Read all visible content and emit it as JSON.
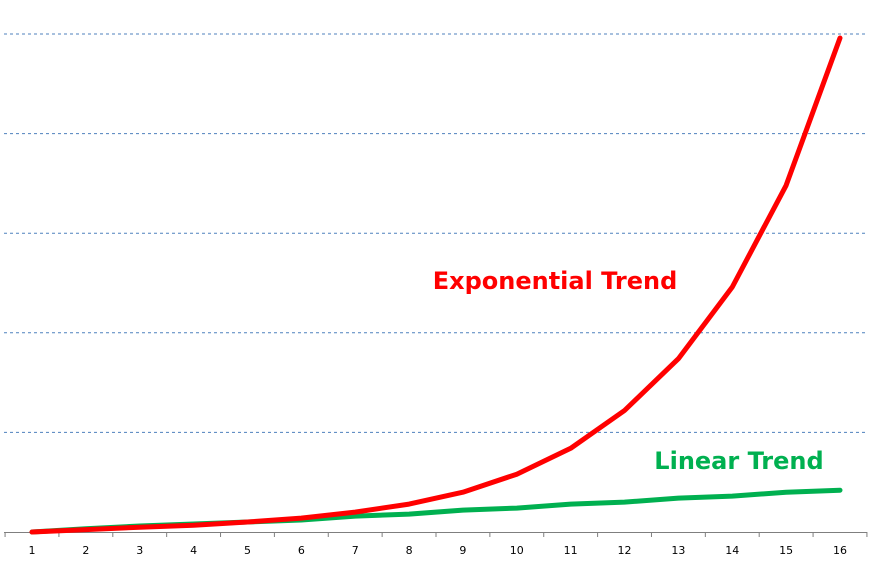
{
  "chart_data": {
    "type": "line",
    "x": [
      1,
      2,
      3,
      4,
      5,
      6,
      7,
      8,
      9,
      10,
      11,
      12,
      13,
      14,
      15,
      16
    ],
    "categories": [
      "1",
      "2",
      "3",
      "4",
      "5",
      "6",
      "7",
      "8",
      "9",
      "10",
      "11",
      "12",
      "13",
      "14",
      "15",
      "16"
    ],
    "series": [
      {
        "name": "Exponential Trend",
        "color": "#ff0000",
        "values": [
          0.0,
          0.6,
          1.2,
          1.7,
          2.5,
          3.5,
          5.0,
          7.0,
          10.0,
          14.5,
          21.0,
          30.5,
          43.5,
          61.5,
          87.0,
          124.0
        ]
      },
      {
        "name": "Linear Trend",
        "color": "#00b050",
        "values": [
          0.0,
          0.8,
          1.5,
          2.0,
          2.5,
          3.0,
          4.0,
          4.5,
          5.5,
          6.0,
          7.0,
          7.5,
          8.5,
          9.0,
          10.0,
          10.5
        ]
      }
    ],
    "ylim": [
      0,
      125
    ],
    "grid": true,
    "xlabel": "",
    "ylabel": "",
    "title": ""
  }
}
